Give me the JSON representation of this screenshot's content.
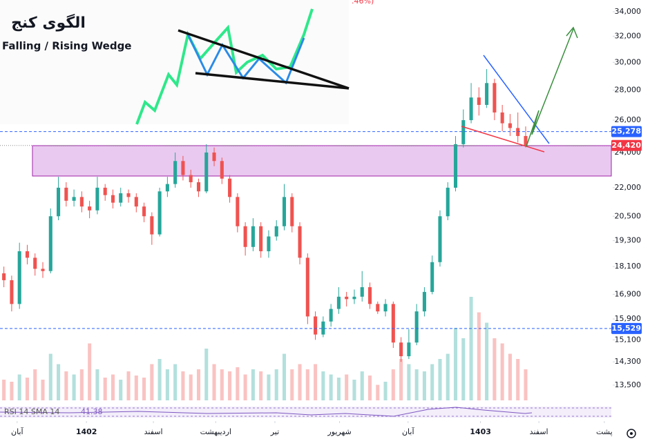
{
  "chart_data": {
    "type": "candlestick",
    "inset_title": "الگوی کنج",
    "inset_subtitle": "Falling / Rising Wedge",
    "top_fragment": ".46%)",
    "indicator_label": "RSI 14 SMA 14",
    "indicator_value": "41.38",
    "log_scale": true,
    "up_color": "#26a69a",
    "down_color": "#ef5350",
    "ylim": [
      13000,
      35000
    ],
    "yticks": [
      {
        "value": 34000,
        "label": "34,000"
      },
      {
        "value": 32000,
        "label": "32,000"
      },
      {
        "value": 30000,
        "label": "30,000"
      },
      {
        "value": 28000,
        "label": "28,000"
      },
      {
        "value": 26000,
        "label": "26,000"
      },
      {
        "value": 24000,
        "label": "24,000"
      },
      {
        "value": 22000,
        "label": "22,000"
      },
      {
        "value": 20500,
        "label": "20,500"
      },
      {
        "value": 19300,
        "label": "19,300"
      },
      {
        "value": 18100,
        "label": "18,100"
      },
      {
        "value": 16900,
        "label": "16,900"
      },
      {
        "value": 15900,
        "label": "15,900"
      },
      {
        "value": 15100,
        "label": "15,100"
      },
      {
        "value": 14300,
        "label": "14,300"
      },
      {
        "value": 13500,
        "label": "13,500"
      }
    ],
    "xlim": [
      -0.5,
      78
    ],
    "xticks": [
      {
        "value": 1.7,
        "label": "آبان"
      },
      {
        "value": 10.6,
        "label": "1402"
      },
      {
        "value": 19.2,
        "label": "اسفند"
      },
      {
        "value": 27.2,
        "label": "اردیبهشت"
      },
      {
        "value": 34.8,
        "label": "تیر"
      },
      {
        "value": 43.1,
        "label": "شهریور"
      },
      {
        "value": 51.9,
        "label": "آبان"
      },
      {
        "value": 61.2,
        "label": "1403"
      },
      {
        "value": 68.7,
        "label": "اسفند"
      },
      {
        "value": 77.1,
        "label": "پشت"
      }
    ],
    "price_lines": [
      {
        "value": 25278,
        "label": "25,278",
        "color": "#2962ff",
        "style": "dashed"
      },
      {
        "value": 24420,
        "label": "24,420",
        "color": "#f23645",
        "style": "dotted"
      },
      {
        "value": 15529,
        "label": "15,529",
        "color": "#2962ff",
        "style": "dashed"
      }
    ],
    "open": [
      17800,
      17500,
      16500,
      18800,
      18500,
      18000,
      17900,
      20500,
      22000,
      21300,
      21500,
      21000,
      20800,
      22000,
      21600,
      21200,
      21700,
      21500,
      21000,
      20500,
      19600,
      21800,
      22200,
      23500,
      22700,
      22300,
      21800,
      24000,
      23500,
      22500,
      21500,
      20000,
      19000,
      20000,
      18800,
      19500,
      20000,
      21500,
      20000,
      18500,
      16000,
      15300,
      15800,
      16300,
      16800,
      16700,
      16800,
      17200,
      16500,
      16200,
      16500,
      15000,
      14500,
      15000,
      16200,
      17000,
      18300,
      20500,
      22000,
      24500,
      26000,
      27500,
      27000,
      28500,
      26500,
      25800,
      25500,
      25000
    ],
    "high": [
      18100,
      17700,
      19200,
      19100,
      18700,
      18300,
      20900,
      22600,
      22300,
      21900,
      21800,
      21300,
      22600,
      22200,
      21900,
      22000,
      21900,
      21700,
      21200,
      20700,
      22000,
      22600,
      24000,
      23800,
      23000,
      22500,
      24500,
      24300,
      23700,
      22700,
      21700,
      20200,
      20400,
      20200,
      19800,
      20300,
      22200,
      21700,
      20200,
      18700,
      16200,
      16000,
      16500,
      17200,
      17000,
      17100,
      17900,
      17400,
      16600,
      16700,
      16600,
      15200,
      15500,
      16500,
      17200,
      18600,
      20800,
      22300,
      25000,
      26700,
      28500,
      28200,
      29500,
      28800,
      27000,
      26400,
      26500,
      25600
    ],
    "low": [
      17200,
      16200,
      16300,
      18200,
      17700,
      17600,
      17800,
      20300,
      21000,
      21000,
      20700,
      20400,
      20600,
      21300,
      20900,
      21000,
      21200,
      20700,
      20200,
      19100,
      19500,
      21500,
      22000,
      22400,
      22000,
      21500,
      21700,
      23200,
      22200,
      21200,
      19700,
      18600,
      18800,
      18500,
      18500,
      19300,
      19800,
      19700,
      18200,
      15700,
      15100,
      15200,
      15600,
      16100,
      16400,
      16500,
      16600,
      16300,
      16100,
      16000,
      14800,
      14300,
      14400,
      14900,
      16000,
      16900,
      18100,
      20300,
      21800,
      24300,
      25800,
      26300,
      26800,
      26000,
      25300,
      25000,
      24600,
      24300
    ],
    "close": [
      17500,
      16500,
      18800,
      18500,
      18000,
      17900,
      20500,
      22000,
      21300,
      21500,
      21000,
      20800,
      22000,
      21600,
      21200,
      21700,
      21500,
      21000,
      20500,
      19600,
      21800,
      22200,
      23500,
      22700,
      22300,
      21800,
      24000,
      23500,
      22500,
      21500,
      20000,
      19000,
      20000,
      18800,
      19500,
      20000,
      21500,
      20000,
      18500,
      16000,
      15300,
      15800,
      16300,
      16800,
      16700,
      16800,
      17200,
      16500,
      16200,
      16500,
      15000,
      14500,
      15000,
      16200,
      17000,
      18300,
      20500,
      22000,
      24500,
      26000,
      27500,
      27000,
      28500,
      26500,
      25800,
      25500,
      25000,
      24420
    ],
    "volume": [
      20,
      18,
      25,
      22,
      30,
      20,
      45,
      35,
      28,
      25,
      30,
      55,
      30,
      22,
      25,
      20,
      28,
      24,
      22,
      35,
      40,
      30,
      35,
      28,
      25,
      30,
      50,
      35,
      30,
      28,
      32,
      25,
      30,
      28,
      25,
      30,
      45,
      30,
      35,
      30,
      35,
      28,
      25,
      22,
      25,
      20,
      28,
      24,
      15,
      18,
      30,
      40,
      35,
      30,
      28,
      35,
      40,
      45,
      70,
      60,
      100,
      85,
      75,
      60,
      55,
      45,
      40,
      30
    ]
  }
}
